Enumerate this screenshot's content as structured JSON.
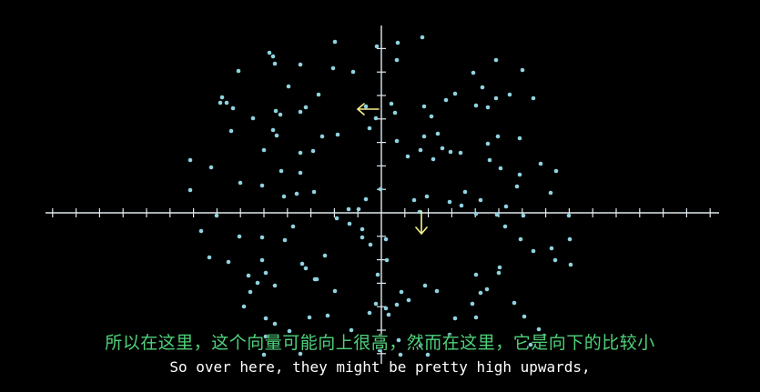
{
  "colors": {
    "background": "#000000",
    "axis": "#dfe8ee",
    "dot": "#8fd3e0",
    "arrow": "#f6f08f",
    "subtitle_cn": "#4fd17a",
    "subtitle_en": "#ffffff"
  },
  "subtitles": {
    "chinese": "所以在这里，这个向量可能向上很高，然而在这里，它是向下的比较小",
    "english": "So over here, they might be pretty high upwards,"
  },
  "scene": {
    "arrows": [
      {
        "name": "left-pointing-arrow",
        "direction": "left"
      },
      {
        "name": "down-pointing-arrow",
        "direction": "down"
      }
    ]
  }
}
